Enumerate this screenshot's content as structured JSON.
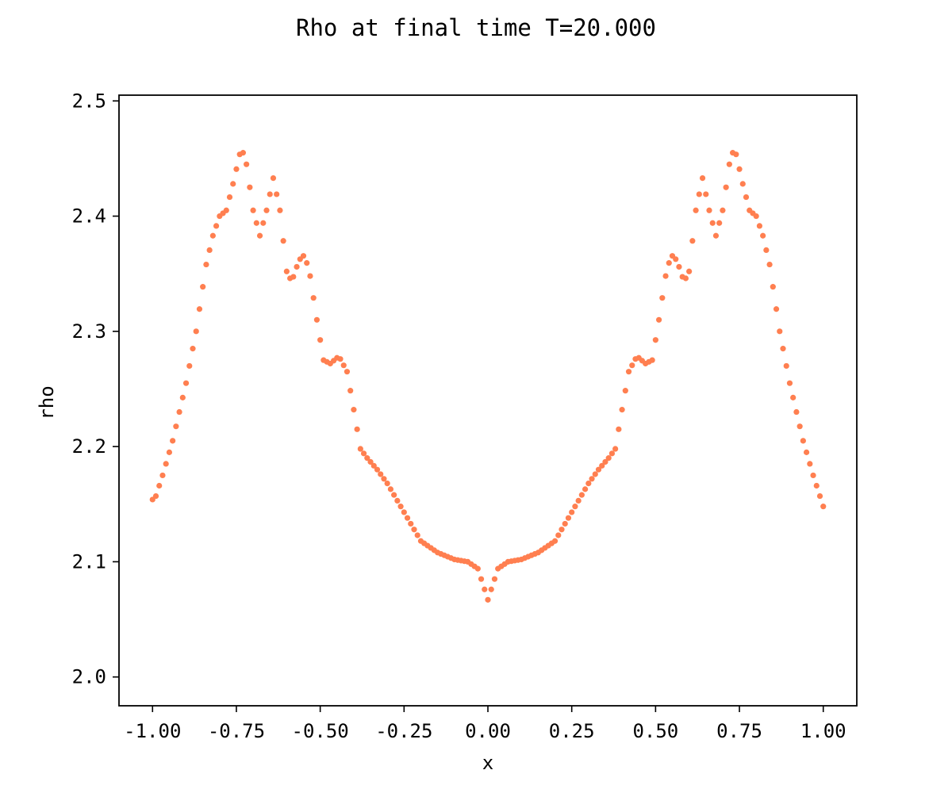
{
  "chart_data": {
    "type": "scatter",
    "title": "Rho at final time T=20.000",
    "xlabel": "x",
    "ylabel": "rho",
    "xlim": [
      -1.1,
      1.1
    ],
    "ylim": [
      1.975,
      2.505
    ],
    "grid": false,
    "marker_color": "#FF7F50",
    "x_ticks": [
      "-1.00",
      "-0.75",
      "-0.50",
      "-0.25",
      "0.00",
      "0.25",
      "0.50",
      "0.75",
      "1.00"
    ],
    "y_ticks": [
      "2.0",
      "2.1",
      "2.2",
      "2.3",
      "2.4",
      "2.5"
    ],
    "curve_knots": {
      "x": [
        0,
        0.03,
        0.06,
        0.1,
        0.15,
        0.2,
        0.25,
        0.3,
        0.33,
        0.36,
        0.38,
        0.4,
        0.42,
        0.44,
        0.45,
        0.47,
        0.49,
        0.51,
        0.53,
        0.545,
        0.555,
        0.57,
        0.585,
        0.6,
        0.62,
        0.64,
        0.66,
        0.68,
        0.7,
        0.72,
        0.735,
        0.76,
        0.78,
        0.8,
        0.82,
        0.84,
        0.87,
        0.9,
        0.94,
        0.97,
        1.0
      ],
      "y": [
        2.067,
        2.094,
        2.1,
        2.102,
        2.108,
        2.118,
        2.143,
        2.168,
        2.18,
        2.19,
        2.198,
        2.232,
        2.265,
        2.276,
        2.277,
        2.272,
        2.275,
        2.31,
        2.348,
        2.365,
        2.366,
        2.356,
        2.343,
        2.352,
        2.405,
        2.433,
        2.405,
        2.383,
        2.405,
        2.445,
        2.46,
        2.428,
        2.405,
        2.4,
        2.383,
        2.358,
        2.3,
        2.255,
        2.205,
        2.175,
        2.148
      ]
    },
    "point_count": 201
  }
}
